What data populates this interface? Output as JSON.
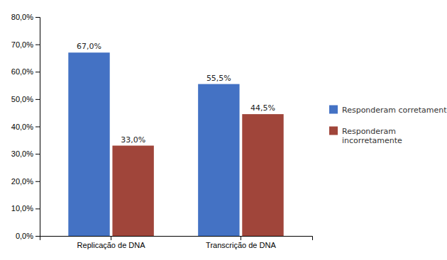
{
  "chart_data": {
    "type": "bar",
    "categories": [
      "Replicação de DNA",
      "Transcrição de DNA"
    ],
    "series": [
      {
        "name": "Responderam corretamente",
        "color": "#4472C4",
        "values": [
          67.0,
          55.5
        ],
        "value_labels": [
          "67,0%",
          "55,5%"
        ]
      },
      {
        "name": "Responderam\nincorretamente",
        "color": "#A0453A",
        "values": [
          33.0,
          44.5
        ],
        "value_labels": [
          "33,0%",
          "44,5%"
        ]
      }
    ],
    "ylim": [
      0,
      80
    ],
    "yticks": [
      {
        "value": 0,
        "label": "0,0%"
      },
      {
        "value": 10,
        "label": "10,0%"
      },
      {
        "value": 20,
        "label": "20,0%"
      },
      {
        "value": 30,
        "label": "30,0%"
      },
      {
        "value": 40,
        "label": "40,0%"
      },
      {
        "value": 50,
        "label": "50,0%"
      },
      {
        "value": 60,
        "label": "60,0%"
      },
      {
        "value": 70,
        "label": "70,0%"
      },
      {
        "value": 80,
        "label": "80,0%"
      }
    ],
    "grid": false,
    "legend": "right",
    "data_labels": true
  }
}
